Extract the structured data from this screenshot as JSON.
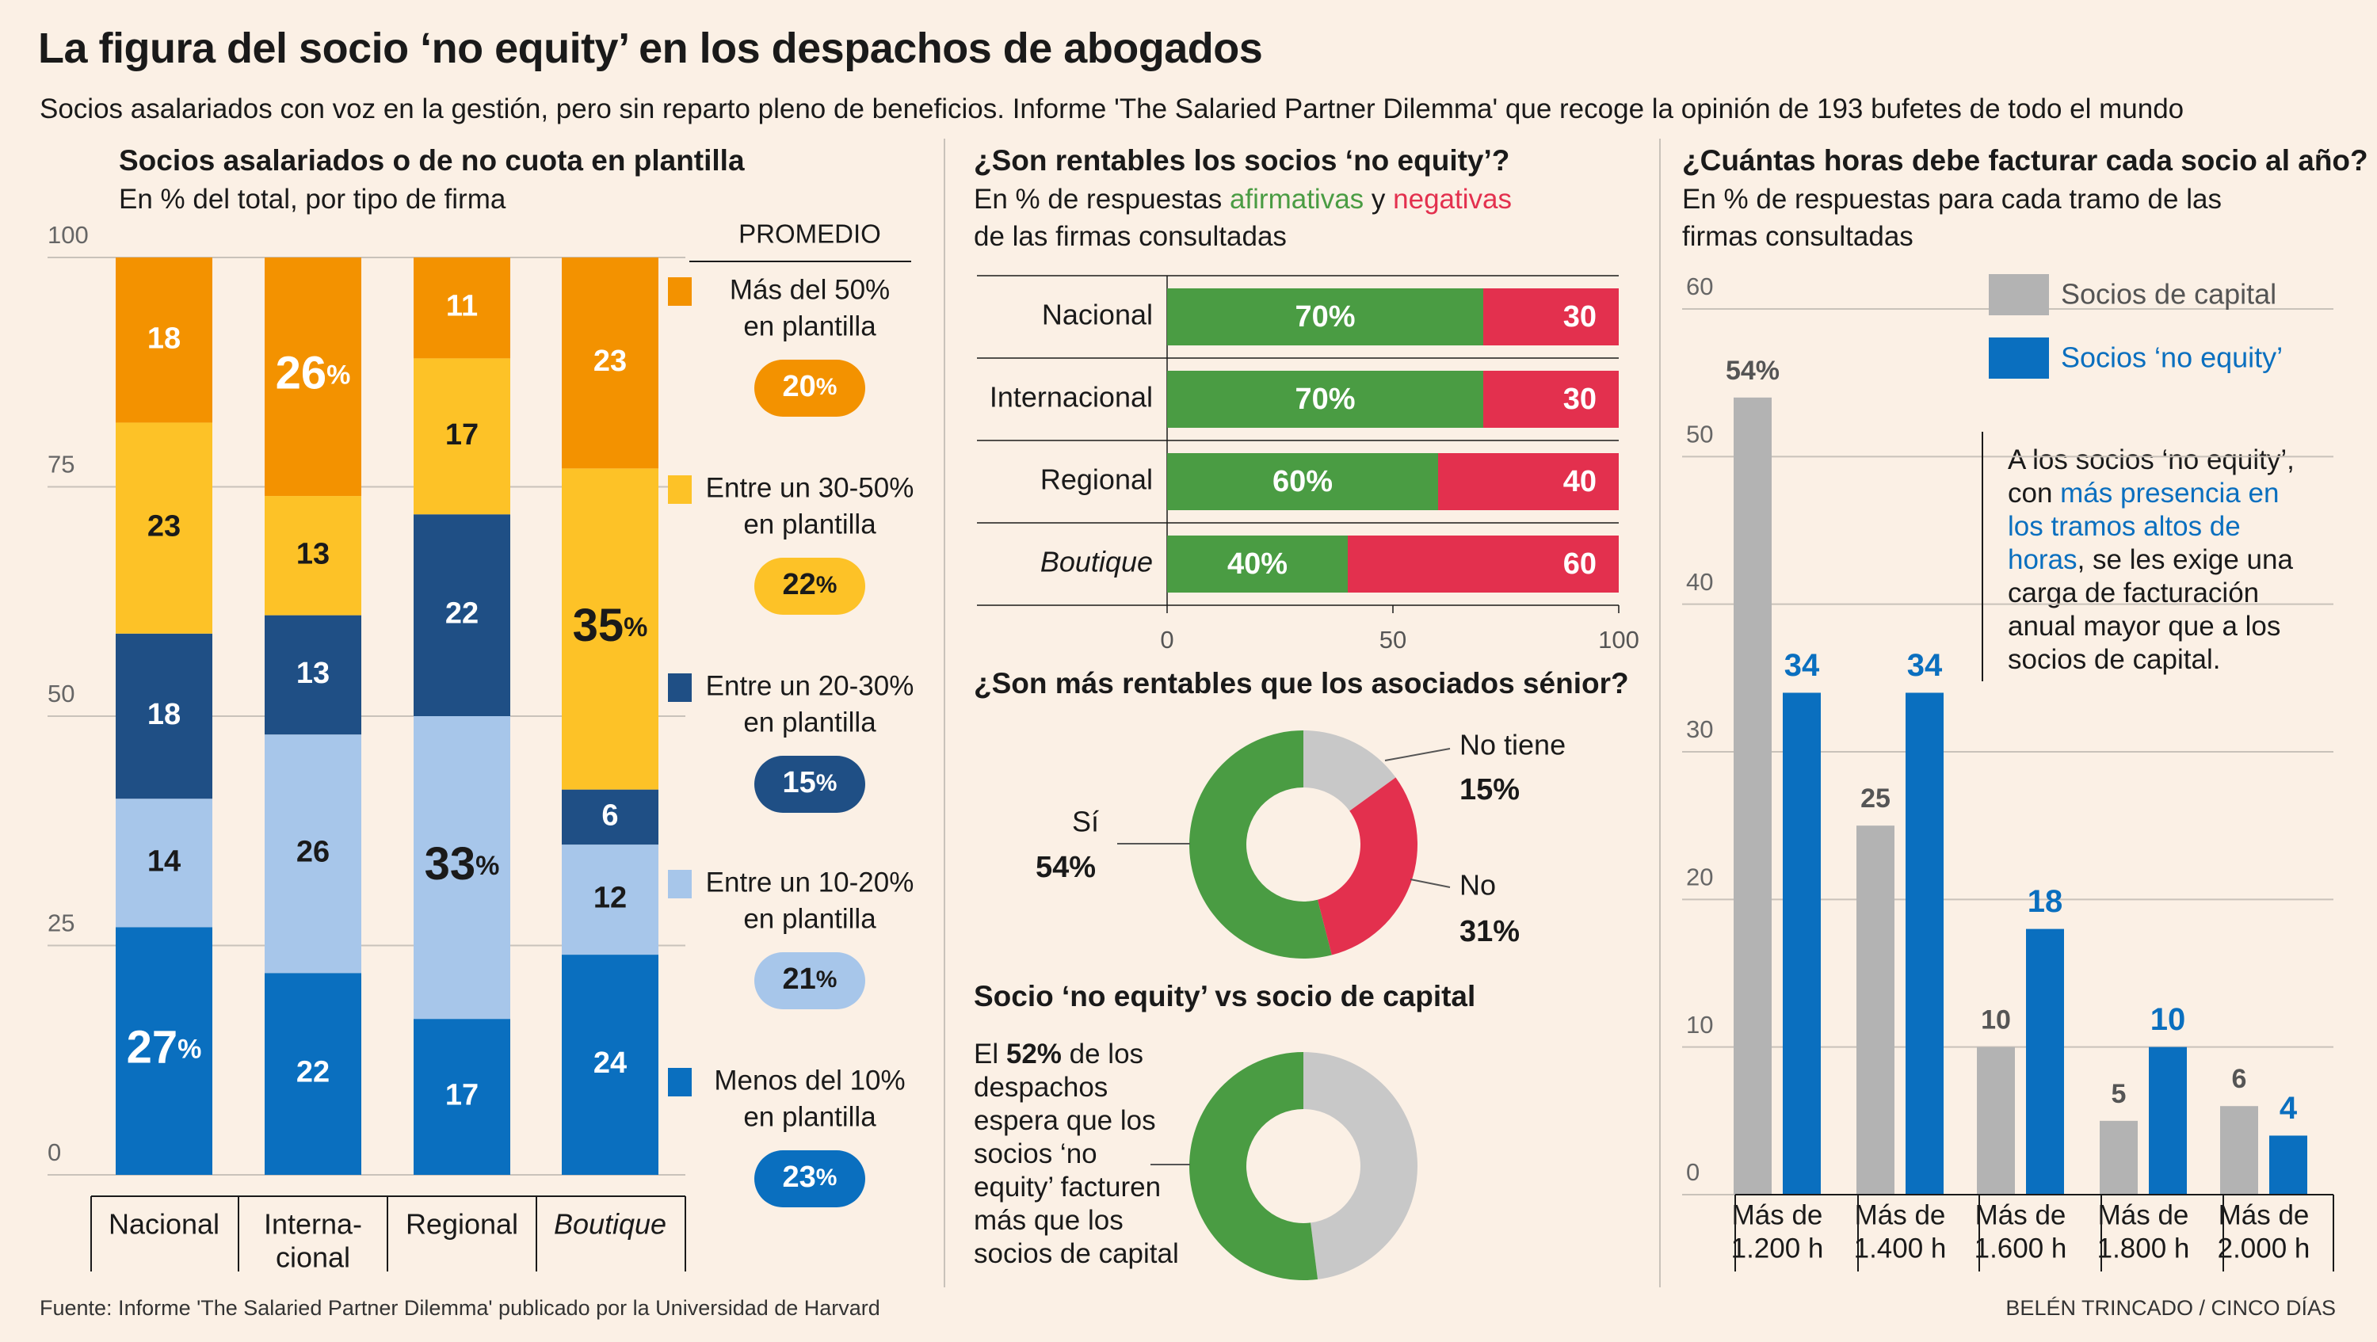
{
  "header": {
    "title": "La figura del socio ‘no equity’ en los despachos de abogados",
    "subtitle": "Socios asalariados con voz en la gestión, pero sin reparto pleno de beneficios. Informe 'The Salaried Partner Dilemma' que recoge la opinión de 193 bufetes de todo el mundo"
  },
  "section1": {
    "title": "Socios asalariados o de no cuota en plantilla",
    "subtitle": "En % del total, por tipo de firma",
    "legend_header": "PROMEDIO"
  },
  "section2": {
    "title": "¿Son rentables los socios ‘no equity’?",
    "subtitle_part1": "En % de respuestas ",
    "subtitle_pos": "afirmativas",
    "subtitle_part2": " y ",
    "subtitle_neg": "negativas",
    "subtitle_line2": "de las firmas consultadas"
  },
  "section3": {
    "title": "¿Son más rentables que los asociados sénior?"
  },
  "section4": {
    "title": "Socio ‘no equity’ vs socio de capital",
    "lead_part1": "El ",
    "lead_bold": "52%",
    "lead_part2": " de los despachos espera que los socios ‘no equity’ facturen más que los socios de capital"
  },
  "section5": {
    "title": "¿Cuántas horas debe facturar cada socio al año?",
    "subtitle": "En % de respuestas  para cada tramo de las firmas consultadas",
    "note_part1": "A los socios ‘no equity’, con ",
    "note_highlight": "más presencia en los tramos altos de horas",
    "note_part2": ", se les exige una carga de facturación anual mayor que a los socios de capital."
  },
  "footer": {
    "source": "Fuente: Informe 'The Salaried Partner Dilemma' publicado por la Universidad de Harvard",
    "credit": "BELÉN TRINCADO / CINCO DÍAS"
  },
  "chart_data": [
    {
      "type": "bar",
      "stacked": true,
      "orientation": "vertical",
      "categories": [
        "Nacional",
        "Interna-\ncional",
        "Regional",
        "Boutique"
      ],
      "ylim": [
        0,
        100
      ],
      "yticks": [
        0,
        25,
        50,
        75,
        100
      ],
      "grid": true,
      "series": [
        {
          "name": "Menos del 10% en plantilla",
          "color": "#0a6fbf",
          "labelColor": "#ffffff",
          "values": [
            27,
            22,
            17,
            24
          ],
          "labels": [
            "27%",
            "22",
            "17",
            "24"
          ],
          "average": "23%"
        },
        {
          "name": "Entre un 10-20% en plantilla",
          "color": "#a7c6ea",
          "labelColor": "#1a1a1a",
          "values": [
            14,
            26,
            33,
            12
          ],
          "labels": [
            "14",
            "26",
            "33%",
            "12"
          ],
          "average": "21%"
        },
        {
          "name": "Entre un 20-30% en plantilla",
          "color": "#1f4f85",
          "labelColor": "#ffffff",
          "values": [
            18,
            13,
            22,
            6
          ],
          "labels": [
            "18",
            "13",
            "22",
            "6"
          ],
          "average": "15%"
        },
        {
          "name": "Entre un 30-50% en plantilla",
          "color": "#fdc227",
          "labelColor": "#1a1a1a",
          "values": [
            23,
            13,
            17,
            35
          ],
          "labels": [
            "23",
            "13",
            "17",
            "35%"
          ],
          "average": "22%"
        },
        {
          "name": "Más del 50% en plantilla",
          "color": "#f39200",
          "labelColor": "#ffffff",
          "values": [
            18,
            26,
            11,
            23
          ],
          "labels": [
            "18",
            "26%",
            "11",
            "23"
          ],
          "average": "20%"
        }
      ]
    },
    {
      "type": "bar",
      "stacked": true,
      "orientation": "horizontal",
      "categories": [
        "Nacional",
        "Internacional",
        "Regional",
        "Boutique"
      ],
      "xlim": [
        0,
        100
      ],
      "xticks": [
        0,
        50,
        100
      ],
      "series": [
        {
          "name": "afirmativas",
          "color": "#4a9c43",
          "values": [
            70,
            70,
            60,
            40
          ],
          "labels": [
            "70%",
            "70%",
            "60%",
            "40%"
          ]
        },
        {
          "name": "negativas",
          "color": "#e3304e",
          "values": [
            30,
            30,
            40,
            60
          ],
          "labels": [
            "30",
            "30",
            "40",
            "60"
          ]
        }
      ]
    },
    {
      "type": "pie",
      "donut": true,
      "slices": [
        {
          "label": "No tiene",
          "value": 15,
          "display": "15%",
          "color": "#c8c8c8"
        },
        {
          "label": "No",
          "value": 31,
          "display": "31%",
          "color": "#e3304e"
        },
        {
          "label": "Sí",
          "value": 54,
          "display": "54%",
          "color": "#4a9c43"
        }
      ]
    },
    {
      "type": "pie",
      "donut": true,
      "slices": [
        {
          "label": "",
          "value": 48,
          "color": "#c8c8c8"
        },
        {
          "label": "",
          "value": 52,
          "color": "#4a9c43"
        }
      ]
    },
    {
      "type": "bar",
      "orientation": "vertical",
      "categories": [
        "Más de\n1.200 h",
        "Más de\n1.400 h",
        "Más de\n1.600 h",
        "Más de\n1.800 h",
        "Más de\n2.000 h"
      ],
      "ylim": [
        0,
        60
      ],
      "yticks": [
        0,
        10,
        20,
        30,
        40,
        50,
        60
      ],
      "grid": true,
      "legend": "top-right",
      "series": [
        {
          "name": "Socios de capital",
          "color": "#b3b3b3",
          "labelColor": "#555555",
          "values": [
            54,
            25,
            10,
            5,
            6
          ],
          "labels": [
            "54%",
            "25",
            "10",
            "5",
            "6"
          ]
        },
        {
          "name": "Socios ‘no equity’",
          "color": "#0a6fbf",
          "labelColor": "#0a6fbf",
          "values": [
            34,
            34,
            18,
            10,
            4
          ],
          "labels": [
            "34",
            "34",
            "18",
            "10",
            "4"
          ]
        }
      ]
    }
  ]
}
